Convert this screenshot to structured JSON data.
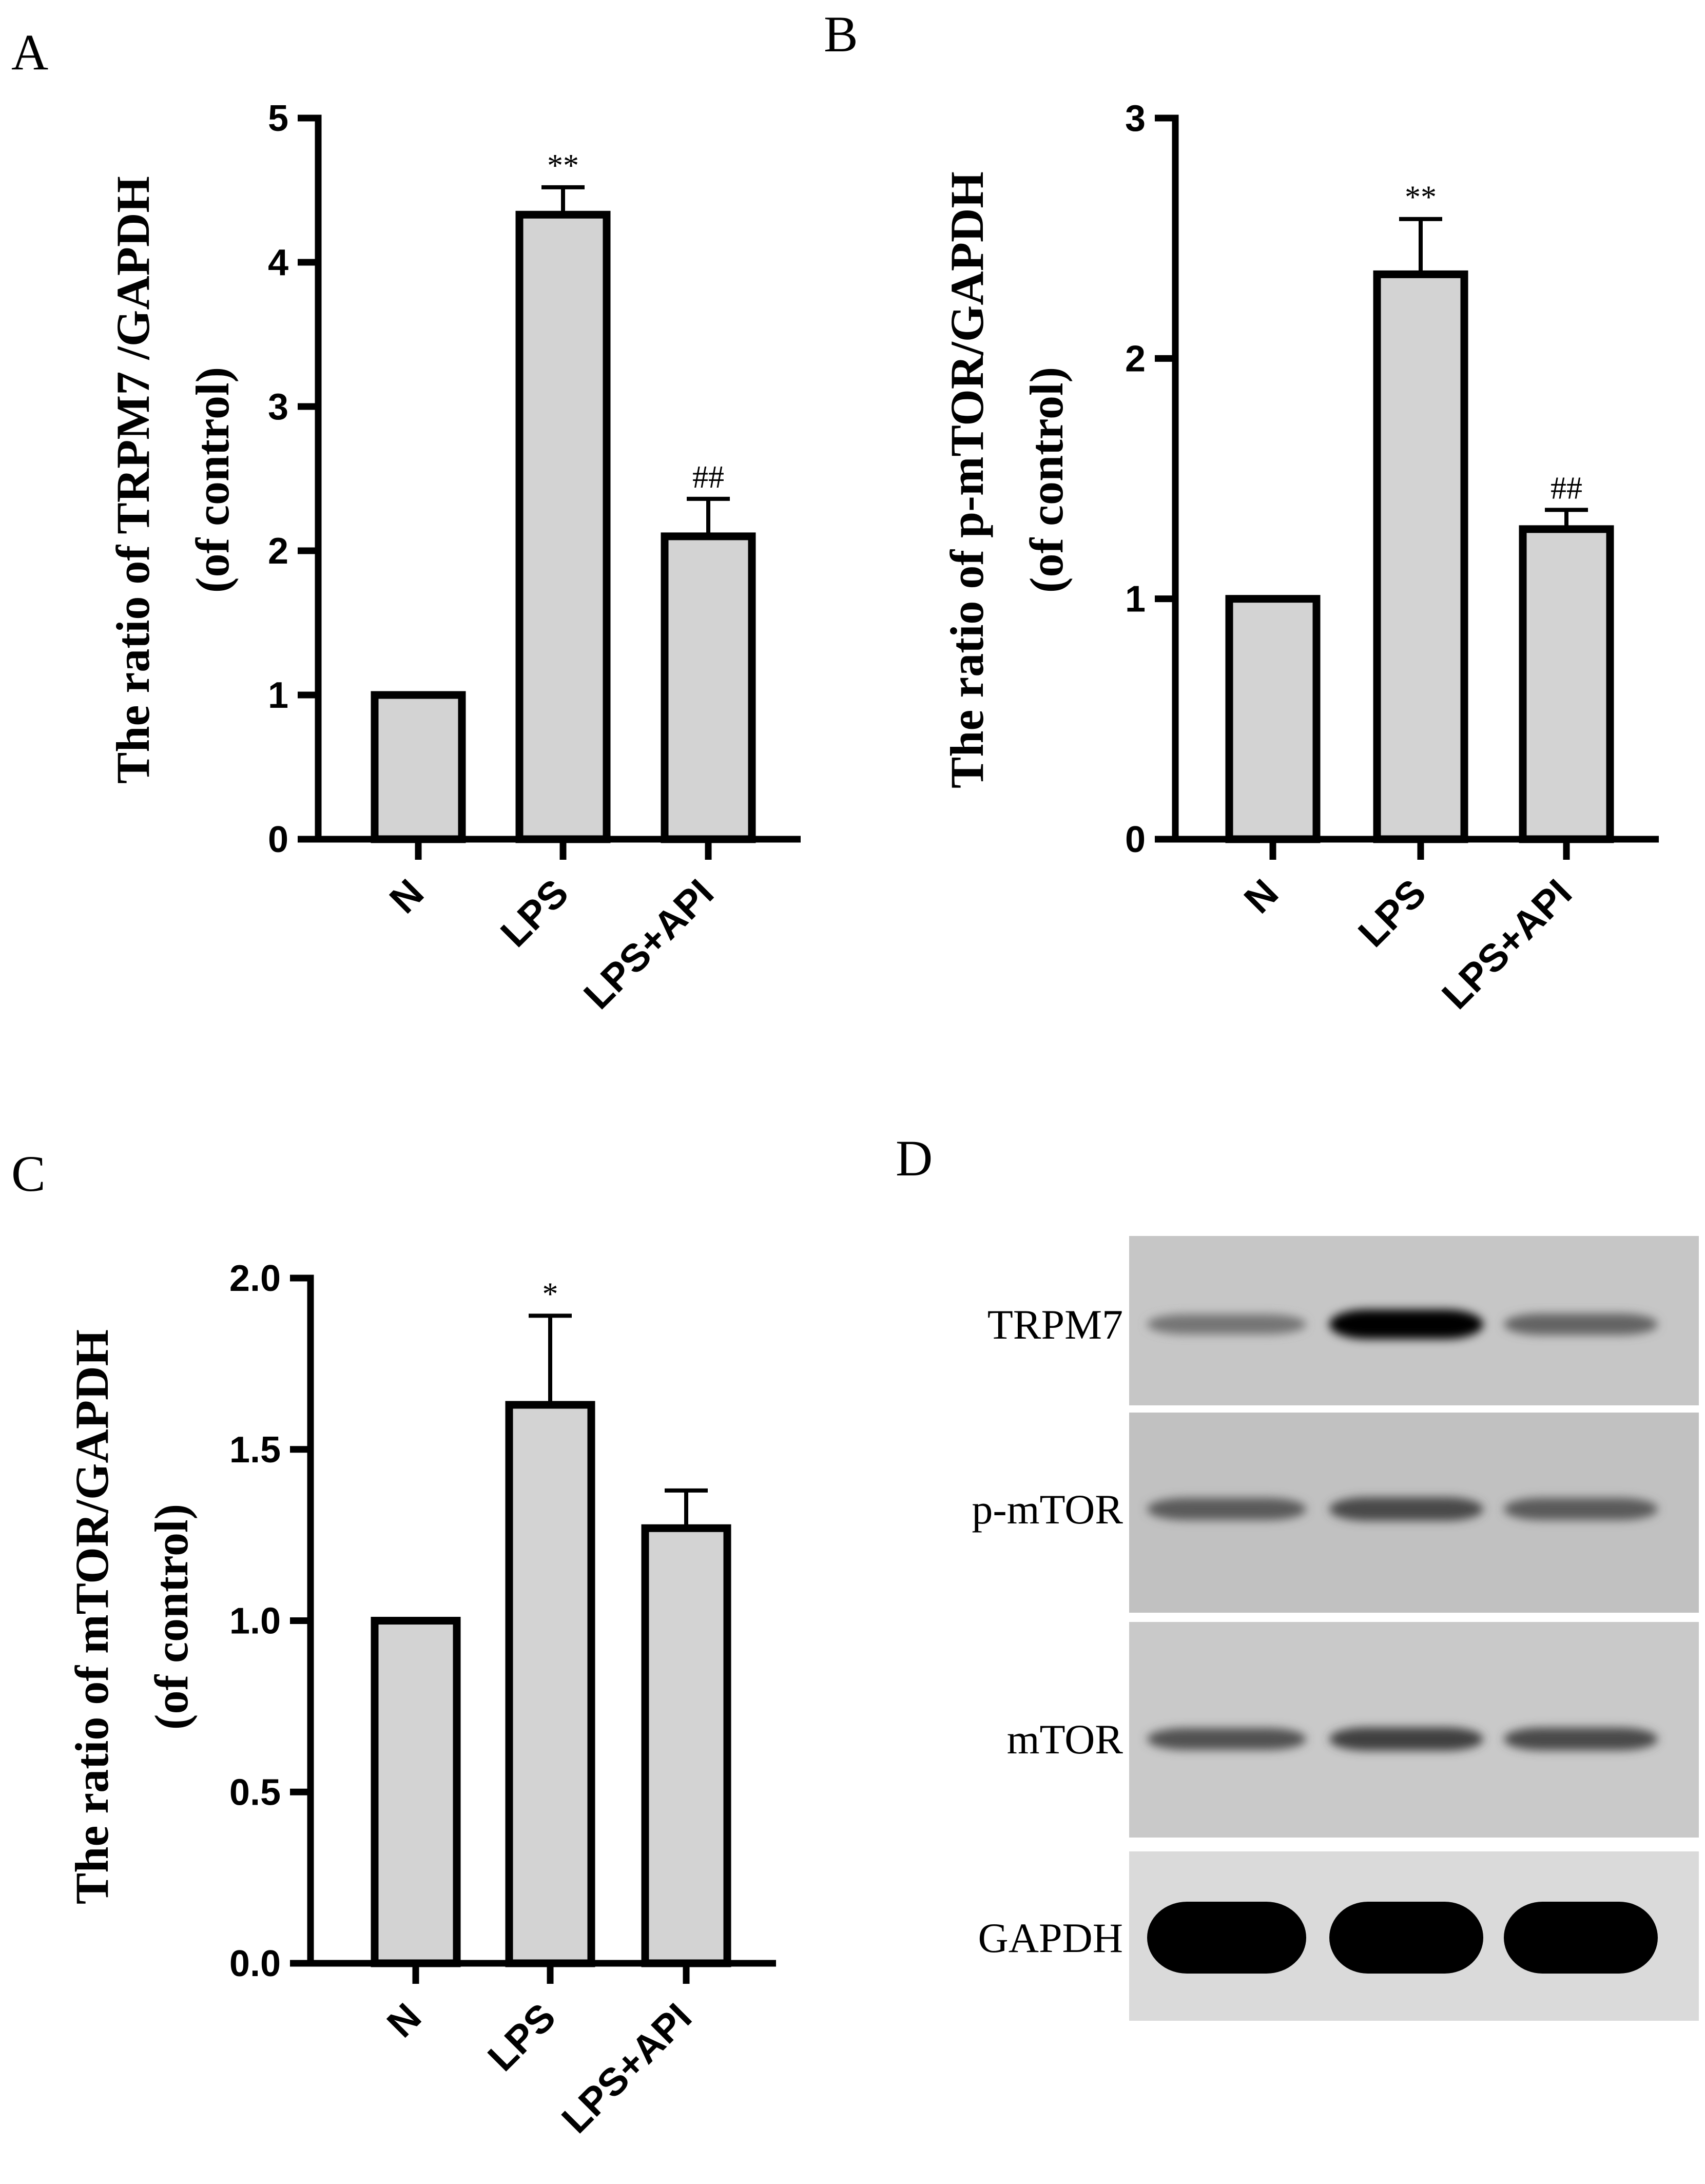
{
  "chart_data": [
    {
      "id": "A",
      "type": "bar",
      "panel_letter": "A",
      "ylabel_lines": [
        "The ratio of TRPM7 /GAPDH",
        "(of control)"
      ],
      "categories": [
        "N",
        "LPS",
        "LPS+API"
      ],
      "values": [
        1.0,
        4.33,
        2.1
      ],
      "errors": [
        0.0,
        0.19,
        0.26
      ],
      "significance": [
        "",
        "**",
        "##"
      ],
      "ylim": [
        0,
        5
      ],
      "yticks": [
        0,
        1,
        2,
        3,
        4,
        5
      ],
      "ytick_labels": [
        "0",
        "1",
        "2",
        "3",
        "4",
        "5"
      ],
      "bar_color": "#d3d3d3",
      "grid": false
    },
    {
      "id": "B",
      "type": "bar",
      "panel_letter": "B",
      "ylabel_lines": [
        "The ratio of p-mTOR/GAPDH",
        "(of control)"
      ],
      "categories": [
        "N",
        "LPS",
        "LPS+API"
      ],
      "values": [
        1.0,
        2.35,
        1.29
      ],
      "errors": [
        0.0,
        0.23,
        0.08
      ],
      "significance": [
        "",
        "**",
        "##"
      ],
      "ylim": [
        0,
        3
      ],
      "yticks": [
        0,
        1,
        2,
        3
      ],
      "ytick_labels": [
        "0",
        "1",
        "2",
        "3"
      ],
      "bar_color": "#d3d3d3",
      "grid": false
    },
    {
      "id": "C",
      "type": "bar",
      "panel_letter": "C",
      "ylabel_lines": [
        "The ratio of mTOR/GAPDH",
        "(of control)"
      ],
      "categories": [
        "N",
        "LPS",
        "LPS+API"
      ],
      "values": [
        1.0,
        1.63,
        1.27
      ],
      "errors": [
        0.0,
        0.26,
        0.11
      ],
      "significance": [
        "",
        "*",
        ""
      ],
      "ylim": [
        0,
        2.0
      ],
      "yticks": [
        0,
        0.5,
        1.0,
        1.5,
        2.0
      ],
      "ytick_labels": [
        "0.0",
        "0.5",
        "1.0",
        "1.5",
        "2.0"
      ],
      "bar_color": "#d3d3d3",
      "grid": false
    }
  ],
  "blot": {
    "panel_letter": "D",
    "rows": [
      {
        "label": "TRPM7",
        "background": "#c6c6c6",
        "band_darkness": [
          0.35,
          1.0,
          0.45
        ]
      },
      {
        "label": "p-mTOR",
        "background": "#c1c1c1",
        "band_darkness": [
          0.5,
          0.6,
          0.5
        ]
      },
      {
        "label": "mTOR",
        "background": "#c9c9c9",
        "band_darkness": [
          0.55,
          0.65,
          0.6
        ]
      },
      {
        "label": "GAPDH",
        "background": "#dadada",
        "band_darkness": [
          1.0,
          1.0,
          1.0
        ]
      }
    ]
  }
}
